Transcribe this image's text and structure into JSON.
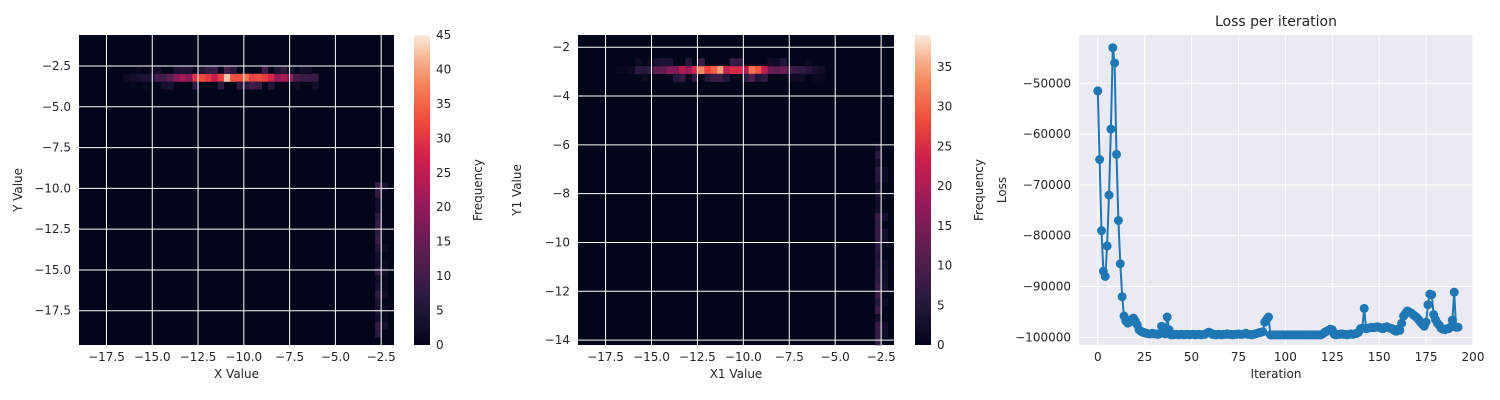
{
  "chart_data": [
    {
      "type": "heatmap",
      "title": "",
      "xlabel": "X Value",
      "ylabel": "Y Value",
      "xlim": [
        -19.0,
        -1.8
      ],
      "ylim": [
        -19.6,
        -0.6
      ],
      "xticks": [
        -17.5,
        -15.0,
        -12.5,
        -10.0,
        -7.5,
        -5.0,
        -2.5
      ],
      "xtick_labels": [
        "−17.5",
        "−15.0",
        "−12.5",
        "−10.0",
        "−7.5",
        "−5.0",
        "−2.5"
      ],
      "yticks": [
        -2.5,
        -5.0,
        -7.5,
        -10.0,
        -12.5,
        -15.0,
        -17.5
      ],
      "ytick_labels": [
        "−2.5",
        "−5.0",
        "−7.5",
        "−10.0",
        "−12.5",
        "−15.0",
        "−17.5"
      ],
      "grid": true,
      "colorbar": {
        "label": "Frequency",
        "range": [
          0,
          45
        ],
        "ticks": [
          0,
          5,
          10,
          15,
          20,
          25,
          30,
          35,
          40,
          45
        ],
        "colormap": "rocket"
      },
      "band": {
        "y": -3.0,
        "x_from": -18.5,
        "x_to": -6.0,
        "peak_x": -10.5,
        "peak_value": 45
      },
      "tail": {
        "x": -2.7,
        "y_from": -10.0,
        "y_to": -19.0,
        "value": 10
      }
    },
    {
      "type": "heatmap",
      "title": "",
      "xlabel": "X1 Value",
      "ylabel": "Y1 Value",
      "xlim": [
        -19.0,
        -1.8
      ],
      "ylim": [
        -14.2,
        -1.5
      ],
      "xticks": [
        -17.5,
        -15.0,
        -12.5,
        -10.0,
        -7.5,
        -5.0,
        -2.5
      ],
      "xtick_labels": [
        "−17.5",
        "−15.0",
        "−12.5",
        "−10.0",
        "−7.5",
        "−5.0",
        "−2.5"
      ],
      "yticks": [
        -2,
        -4,
        -6,
        -8,
        -10,
        -12,
        -14
      ],
      "ytick_labels": [
        "−2",
        "−4",
        "−6",
        "−8",
        "−10",
        "−12",
        "−14"
      ],
      "grid": true,
      "colorbar": {
        "label": "Frequency",
        "range": [
          0,
          39
        ],
        "ticks": [
          0,
          5,
          10,
          15,
          20,
          25,
          30,
          35
        ],
        "colormap": "rocket"
      },
      "band": {
        "y": -2.8,
        "x_from": -18.0,
        "x_to": -5.5,
        "peak_x": -11.0,
        "peak_value": 39
      },
      "tail": {
        "x": -2.7,
        "y_from": -6.0,
        "y_to": -14.0,
        "value": 8
      }
    },
    {
      "type": "line",
      "title": "Loss per iteration",
      "xlabel": "Iteration",
      "ylabel": "Loss",
      "xlim": [
        -10,
        200
      ],
      "ylim": [
        -101500,
        -40500
      ],
      "xticks": [
        0,
        25,
        50,
        75,
        100,
        125,
        150,
        175,
        200
      ],
      "xtick_labels": [
        "0",
        "25",
        "50",
        "75",
        "100",
        "125",
        "150",
        "175",
        "200"
      ],
      "yticks": [
        -50000,
        -60000,
        -70000,
        -80000,
        -90000,
        -100000
      ],
      "ytick_labels": [
        "−50000",
        "−60000",
        "−70000",
        "−80000",
        "−90000",
        "−100000"
      ],
      "grid": true,
      "color": "#1f77b4",
      "x": [
        0,
        1,
        2,
        3,
        4,
        5,
        6,
        7,
        8,
        9,
        10,
        11,
        12,
        13,
        14,
        15,
        16,
        17,
        18,
        19,
        20,
        21,
        22,
        23,
        24,
        25,
        26,
        27,
        28,
        29,
        30,
        31,
        32,
        33,
        34,
        35,
        36,
        37,
        38,
        39,
        40,
        41,
        42,
        43,
        44,
        45,
        46,
        47,
        48,
        49,
        50,
        51,
        52,
        53,
        54,
        55,
        56,
        57,
        58,
        59,
        60,
        61,
        62,
        63,
        64,
        65,
        66,
        67,
        68,
        69,
        70,
        71,
        72,
        73,
        74,
        75,
        76,
        77,
        78,
        79,
        80,
        81,
        82,
        83,
        84,
        85,
        86,
        87,
        88,
        89,
        90,
        91,
        92,
        93,
        94,
        95,
        96,
        97,
        98,
        99,
        100,
        101,
        102,
        103,
        104,
        105,
        106,
        107,
        108,
        109,
        110,
        111,
        112,
        113,
        114,
        115,
        116,
        117,
        118,
        119,
        120,
        121,
        122,
        123,
        124,
        125,
        126,
        127,
        128,
        129,
        130,
        131,
        132,
        133,
        134,
        135,
        136,
        137,
        138,
        139,
        140,
        141,
        142,
        143,
        144,
        145,
        146,
        147,
        148,
        149,
        150,
        151,
        152,
        153,
        154,
        155,
        156,
        157,
        158,
        159,
        160,
        161,
        162,
        163,
        164,
        165,
        166,
        167,
        168,
        169,
        170,
        171,
        172,
        173,
        174,
        175,
        176,
        177,
        178,
        179,
        180,
        181,
        182,
        183,
        184,
        185,
        186,
        187,
        188,
        189,
        190,
        191,
        192
      ],
      "y": [
        -51500,
        -65000,
        -79000,
        -87000,
        -88000,
        -82000,
        -72000,
        -59000,
        -43000,
        -46000,
        -64000,
        -77000,
        -85500,
        -92000,
        -95800,
        -96800,
        -97200,
        -97000,
        -96500,
        -96200,
        -96800,
        -97500,
        -98500,
        -98800,
        -99000,
        -99100,
        -99200,
        -99300,
        -99300,
        -99200,
        -99300,
        -99300,
        -99400,
        -99300,
        -97800,
        -98800,
        -99300,
        -96000,
        -98500,
        -99500,
        -99500,
        -99400,
        -99400,
        -99500,
        -99400,
        -99400,
        -99500,
        -99400,
        -99400,
        -99500,
        -99400,
        -99400,
        -99500,
        -99400,
        -99400,
        -99500,
        -99400,
        -99400,
        -99200,
        -99000,
        -99100,
        -99400,
        -99400,
        -99500,
        -99400,
        -99400,
        -99500,
        -99400,
        -99400,
        -99300,
        -99400,
        -99400,
        -99500,
        -99400,
        -99400,
        -99300,
        -99400,
        -99400,
        -99300,
        -99200,
        -99400,
        -99400,
        -99500,
        -99400,
        -99300,
        -99200,
        -99100,
        -99000,
        -98900,
        -97000,
        -96500,
        -96000,
        -99500,
        -99500,
        -99500,
        -99500,
        -99500,
        -99500,
        -99500,
        -99500,
        -99500,
        -99500,
        -99500,
        -99500,
        -99500,
        -99500,
        -99500,
        -99500,
        -99500,
        -99500,
        -99500,
        -99500,
        -99500,
        -99500,
        -99500,
        -99500,
        -99500,
        -99500,
        -99500,
        -99500,
        -99300,
        -99000,
        -98800,
        -98600,
        -98400,
        -98500,
        -99400,
        -99500,
        -99400,
        -99400,
        -99300,
        -99400,
        -99400,
        -99500,
        -99400,
        -99300,
        -99400,
        -99300,
        -99200,
        -99000,
        -98300,
        -98200,
        -94300,
        -98300,
        -98200,
        -98100,
        -98000,
        -98100,
        -98000,
        -97900,
        -98000,
        -98200,
        -98300,
        -98000,
        -97900,
        -98100,
        -98200,
        -98300,
        -98600,
        -98800,
        -98400,
        -98600,
        -97200,
        -95800,
        -95300,
        -94800,
        -95000,
        -95200,
        -95500,
        -95800,
        -96100,
        -96500,
        -97000,
        -97400,
        -97800,
        -97000,
        -93600,
        -91500,
        -91600,
        -95500,
        -96500,
        -97200,
        -97600,
        -98200,
        -98400,
        -98500,
        -98300,
        -98300,
        -98000,
        -96600,
        -91100,
        -98000,
        -98000
      ]
    }
  ]
}
